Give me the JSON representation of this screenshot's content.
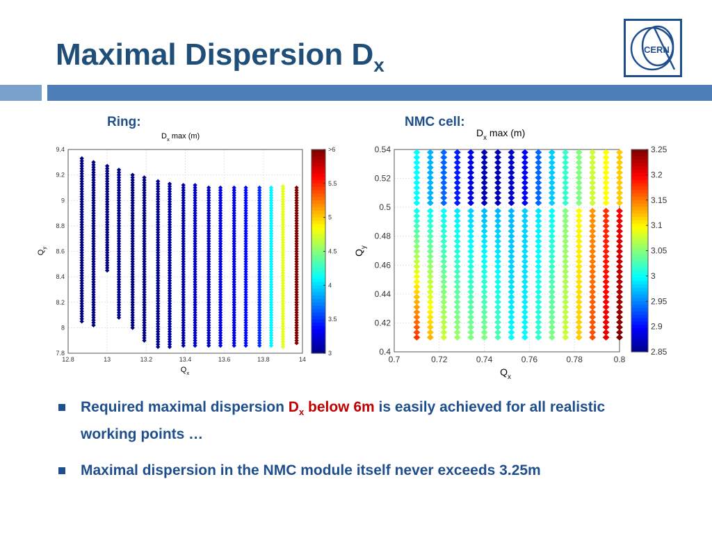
{
  "slide": {
    "title": "Maximal Dispersion D",
    "title_sub": "x",
    "ring_label": "Ring:",
    "nmc_label": "NMC cell:"
  },
  "bullets": [
    {
      "pre": "Required maximal dispersion ",
      "red": "D",
      "red_sub": "x",
      "red_post": " below 6m",
      "post": " is easily achieved for all realistic working points …"
    },
    {
      "text": "Maximal dispersion in the NMC module itself never exceeds 3.25m"
    }
  ],
  "logo": {
    "text": "CERN",
    "icon": "cern-logo-icon"
  },
  "colors": {
    "title": "#1f4e79",
    "accent_bar": "#4f7fb8",
    "accent_bar_light": "#7aa0cc",
    "highlight": "#c00000"
  },
  "chart_data": [
    {
      "type": "scatter",
      "title": "D",
      "title_sub": "x",
      "title_post": " max (m)",
      "xlabel": "Q",
      "xlabel_sub": "x",
      "ylabel": "Q",
      "ylabel_sub": "y",
      "xlim": [
        12.8,
        14
      ],
      "ylim": [
        7.8,
        9.4
      ],
      "xticks": [
        "12.8",
        "13",
        "13.2",
        "13.4",
        "13.6",
        "13.8",
        "14"
      ],
      "yticks": [
        "7.8",
        "8",
        "8.2",
        "8.4",
        "8.6",
        "8.8",
        "9",
        "9.2",
        "9.4"
      ],
      "colorbar": {
        "min": 3,
        "max": 6,
        "ticks": [
          "3",
          "3.5",
          "4",
          "4.5",
          "5",
          "5.5",
          ">6"
        ]
      },
      "columns": [
        {
          "x": 12.87,
          "ymin": 8.05,
          "ymax": 9.33,
          "value": 3.0
        },
        {
          "x": 12.93,
          "ymin": 8.02,
          "ymax": 9.3,
          "value": 3.0
        },
        {
          "x": 13.0,
          "ymin": 8.45,
          "ymax": 9.27,
          "value": 3.0
        },
        {
          "x": 13.06,
          "ymin": 8.08,
          "ymax": 9.24,
          "value": 3.05
        },
        {
          "x": 13.13,
          "ymin": 8.0,
          "ymax": 9.21,
          "value": 3.0
        },
        {
          "x": 13.19,
          "ymin": 7.9,
          "ymax": 9.18,
          "value": 3.0
        },
        {
          "x": 13.26,
          "ymin": 7.85,
          "ymax": 9.16,
          "value": 3.05
        },
        {
          "x": 13.32,
          "ymin": 7.85,
          "ymax": 9.14,
          "value": 3.1
        },
        {
          "x": 13.39,
          "ymin": 7.86,
          "ymax": 9.12,
          "value": 3.1
        },
        {
          "x": 13.45,
          "ymin": 7.86,
          "ymax": 9.12,
          "value": 3.2
        },
        {
          "x": 13.52,
          "ymin": 7.86,
          "ymax": 9.11,
          "value": 3.2
        },
        {
          "x": 13.58,
          "ymin": 7.86,
          "ymax": 9.11,
          "value": 3.3
        },
        {
          "x": 13.65,
          "ymin": 7.86,
          "ymax": 9.11,
          "value": 3.3
        },
        {
          "x": 13.71,
          "ymin": 7.86,
          "ymax": 9.11,
          "value": 3.4
        },
        {
          "x": 13.78,
          "ymin": 7.86,
          "ymax": 9.11,
          "value": 3.5
        },
        {
          "x": 13.84,
          "ymin": 7.86,
          "ymax": 9.11,
          "value": 4.1
        },
        {
          "x": 13.9,
          "ymin": 7.85,
          "ymax": 9.11,
          "value": 4.8
        },
        {
          "x": 13.97,
          "ymin": 7.88,
          "ymax": 9.11,
          "value": 6.0
        }
      ]
    },
    {
      "type": "scatter",
      "title": "D",
      "title_sub": "x",
      "title_post": " max (m)",
      "xlabel": "Q",
      "xlabel_sub": "x",
      "ylabel": "Q",
      "ylabel_sub": "y",
      "xlim": [
        0.7,
        0.8
      ],
      "ylim": [
        0.4,
        0.54
      ],
      "xticks": [
        "0.7",
        "0.72",
        "0.74",
        "0.76",
        "0.78",
        "0.8"
      ],
      "yticks": [
        "0.4",
        "0.42",
        "0.44",
        "0.46",
        "0.48",
        "0.5",
        "0.52",
        "0.54"
      ],
      "colorbar": {
        "min": 2.85,
        "max": 3.25,
        "ticks": [
          "2.85",
          "2.9",
          "2.95",
          "3",
          "3.05",
          "3.1",
          "3.15",
          "3.2",
          "3.25"
        ]
      },
      "x": [
        0.71,
        0.716,
        0.722,
        0.728,
        0.734,
        0.74,
        0.746,
        0.752,
        0.758,
        0.764,
        0.77,
        0.776,
        0.782,
        0.788,
        0.794,
        0.8
      ],
      "upper_band": {
        "ymin": 0.503,
        "ymax": 0.54,
        "values": [
          3.0,
          2.97,
          2.94,
          2.91,
          2.89,
          2.87,
          2.87,
          2.88,
          2.9,
          2.94,
          2.98,
          3.02,
          3.05,
          3.08,
          3.1,
          3.12
        ]
      },
      "lower_band": {
        "ymin": 0.41,
        "ymax": 0.5,
        "bottom_values": [
          3.18,
          3.13,
          3.08,
          3.06,
          3.05,
          3.05,
          3.03,
          3.0,
          3.0,
          3.02,
          3.05,
          3.08,
          3.12,
          3.17,
          3.21,
          3.25
        ],
        "top_values": [
          3.0,
          3.0,
          3.0,
          2.99,
          2.98,
          2.97,
          2.97,
          2.97,
          2.98,
          2.99,
          3.0,
          3.05,
          3.1,
          3.14,
          3.18,
          3.2
        ]
      }
    }
  ]
}
